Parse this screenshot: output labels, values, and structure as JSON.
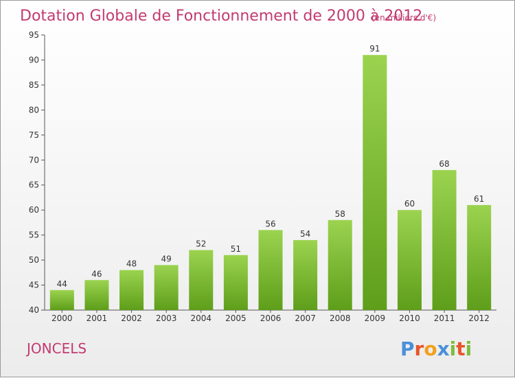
{
  "title": "Dotation Globale de Fonctionnement de 2000 à 2012",
  "subtitle": "(en milliers d'€)",
  "commune": "JONCELS",
  "logo": {
    "text": "Proxiti",
    "colors": [
      "#4a90d9",
      "#e8552b",
      "#f2a01e",
      "#4a90d9",
      "#7bbf3a",
      "#e8552b",
      "#7bbf3a"
    ]
  },
  "chart_data": {
    "type": "bar",
    "categories": [
      "2000",
      "2001",
      "2002",
      "2003",
      "2004",
      "2005",
      "2006",
      "2007",
      "2008",
      "2009",
      "2010",
      "2011",
      "2012"
    ],
    "values": [
      44,
      46,
      48,
      49,
      52,
      51,
      56,
      54,
      58,
      91,
      60,
      68,
      61
    ],
    "ylim": [
      40,
      95
    ],
    "yticks": [
      40,
      45,
      50,
      55,
      60,
      65,
      70,
      75,
      80,
      85,
      90,
      95
    ],
    "grid": false,
    "bar_colors": {
      "top": "#9bd34f",
      "bottom": "#5e9e1a"
    }
  }
}
